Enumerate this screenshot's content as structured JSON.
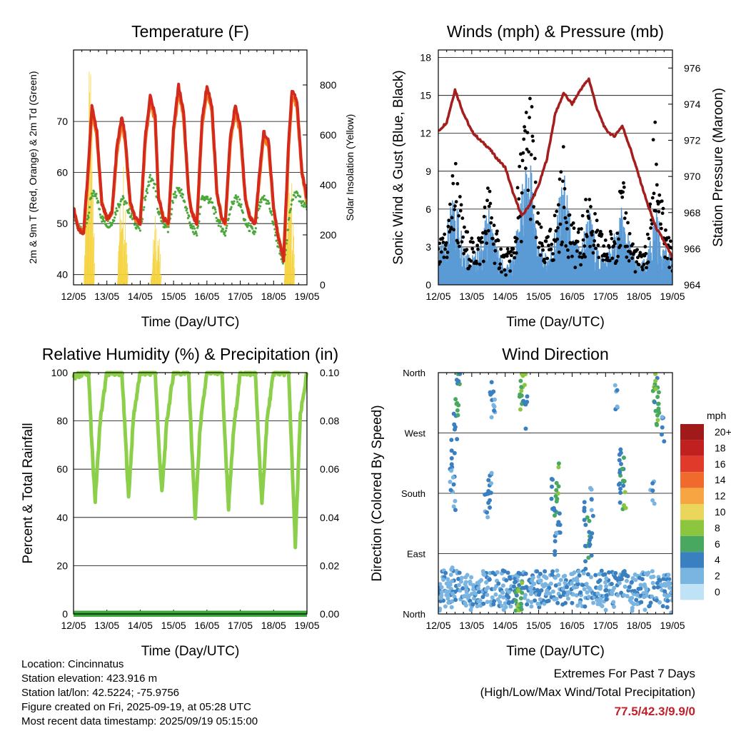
{
  "time_ticks": [
    "12/05",
    "13/05",
    "14/05",
    "15/05",
    "16/05",
    "17/05",
    "18/05",
    "19/05"
  ],
  "time_axis_label": "Time (Day/UTC)",
  "chart_data": [
    {
      "id": "temperature",
      "type": "line",
      "title": "Temperature (F)",
      "xlabel": "Time (Day/UTC)",
      "ylabel": "2m & 9m T (Red, Orange) & 2m Td (Green)",
      "y2label": "Solar Insolation (Yellow)",
      "ylim": [
        38,
        84
      ],
      "y2lim": [
        0,
        940
      ],
      "yticks": [
        40,
        50,
        60,
        70
      ],
      "y2ticks": [
        0,
        200,
        400,
        600,
        800
      ],
      "x": [
        0,
        0.15,
        0.3,
        0.45,
        0.55,
        0.7,
        0.85,
        1.0,
        1.15,
        1.3,
        1.45,
        1.55,
        1.7,
        1.85,
        2.0,
        2.15,
        2.3,
        2.45,
        2.55,
        2.7,
        2.85,
        3.0,
        3.15,
        3.3,
        3.45,
        3.55,
        3.7,
        3.85,
        4.0,
        4.15,
        4.3,
        4.45,
        4.55,
        4.7,
        4.85,
        5.0,
        5.15,
        5.3,
        5.45,
        5.55,
        5.7,
        5.85,
        6.0,
        6.15,
        6.3,
        6.45,
        6.55,
        6.7,
        6.85,
        7.0
      ],
      "series": [
        {
          "name": "2m T",
          "color": "#d42a1e",
          "values": [
            53,
            49,
            48,
            62,
            73,
            68,
            54,
            51,
            52,
            65,
            71,
            67,
            54,
            51,
            50,
            67,
            75,
            71,
            55,
            51,
            50,
            69,
            77,
            72,
            56,
            52,
            50,
            70,
            77,
            73,
            56,
            51,
            50,
            67,
            73,
            69,
            55,
            51,
            50,
            58,
            68,
            66,
            53,
            47,
            43,
            66,
            76,
            74,
            60,
            55
          ]
        },
        {
          "name": "9m T",
          "color": "#f07a1e",
          "values": [
            53,
            49,
            48,
            61,
            72,
            67,
            54,
            51,
            52,
            64,
            70,
            66,
            54,
            51,
            50,
            66,
            74,
            70,
            55,
            51,
            50,
            68,
            76,
            71,
            56,
            52,
            50,
            69,
            76,
            72,
            56,
            51,
            50,
            66,
            72,
            68,
            55,
            51,
            50,
            57,
            67,
            65,
            53,
            47,
            43,
            65,
            75,
            73,
            60,
            54
          ]
        },
        {
          "name": "2m Td",
          "color": "#4aa83a",
          "values": [
            52,
            49,
            48,
            52,
            56,
            55,
            51,
            50,
            50,
            53,
            55,
            54,
            52,
            50,
            49,
            55,
            59,
            57,
            52,
            50,
            49,
            55,
            57,
            55,
            51,
            49,
            48,
            55,
            55,
            54,
            51,
            49,
            48,
            53,
            55,
            54,
            50,
            49,
            48,
            53,
            55,
            54,
            50,
            45,
            42,
            50,
            55,
            56,
            54,
            53
          ]
        },
        {
          "name": "Solar Insolation",
          "color": "#f5d23a",
          "axis": "y2",
          "values": [
            0,
            0,
            420,
            880,
            600,
            200,
            0,
            0,
            0,
            350,
            550,
            250,
            0,
            0,
            0,
            400,
            780,
            300,
            0,
            0,
            0,
            450,
            700,
            280,
            0,
            0,
            0,
            380,
            650,
            260,
            0,
            0,
            0,
            300,
            500,
            200,
            0,
            0,
            0,
            380,
            700,
            230,
            0,
            0,
            0,
            500,
            800,
            250,
            0,
            0
          ]
        }
      ]
    },
    {
      "id": "winds",
      "type": "line",
      "title": "Winds (mph) & Pressure (mb)",
      "xlabel": "Time (Day/UTC)",
      "ylabel": "Sonic Wind & Gust (Blue, Black)",
      "y2label": "Station Pressure (Maroon)",
      "ylim": [
        0,
        18.6
      ],
      "y2lim": [
        964,
        977
      ],
      "yticks": [
        0,
        3,
        6,
        9,
        12,
        15,
        18
      ],
      "y2ticks": [
        964,
        966,
        968,
        970,
        972,
        974,
        976
      ],
      "x": [
        0,
        0.25,
        0.5,
        0.75,
        1.0,
        1.25,
        1.5,
        1.75,
        2.0,
        2.25,
        2.5,
        2.75,
        3.0,
        3.25,
        3.5,
        3.75,
        4.0,
        4.25,
        4.5,
        4.75,
        5.0,
        5.25,
        5.5,
        5.75,
        6.0,
        6.25,
        6.5,
        6.75,
        7.0
      ],
      "series": [
        {
          "name": "Sonic Wind",
          "color": "#5b9bd5",
          "values": [
            1.5,
            3,
            5,
            2.5,
            1.5,
            2,
            4,
            2,
            1,
            1.5,
            5,
            7,
            2,
            1.5,
            3,
            6,
            2.5,
            2,
            4,
            2,
            1.5,
            2.5,
            4,
            2,
            1,
            1.5,
            4,
            2,
            1.5
          ]
        },
        {
          "name": "Gust",
          "color": "#000000",
          "values": [
            2.5,
            4,
            9,
            4,
            3,
            3.5,
            7,
            3.5,
            2,
            3,
            10,
            14,
            4,
            3,
            5,
            9,
            4,
            3.5,
            7,
            4,
            3,
            4,
            7,
            3.5,
            2,
            3,
            12,
            4,
            2.5
          ]
        },
        {
          "name": "Station Pressure",
          "color": "#a41e1e",
          "axis": "y2",
          "values": [
            972.5,
            973,
            974.8,
            973.5,
            972.5,
            972,
            971.6,
            971,
            970.5,
            969,
            967.8,
            968.5,
            969.5,
            971,
            973.5,
            974.6,
            974,
            974.8,
            975.4,
            973.7,
            972.6,
            972.2,
            972.8,
            971.5,
            970,
            968.5,
            967.2,
            966.4,
            965.5
          ]
        }
      ]
    },
    {
      "id": "humidity",
      "type": "line",
      "title": "Relative Humidity (%) & Precipitation (in)",
      "xlabel": "Time (Day/UTC)",
      "ylabel": "Percent & Total Rainfall",
      "ylim": [
        0,
        100
      ],
      "y2lim": [
        0,
        0.1
      ],
      "yticks": [
        0,
        20,
        40,
        60,
        80,
        100
      ],
      "y2ticks": [
        "0.00",
        "0.02",
        "0.04",
        "0.06",
        "0.08",
        "0.10"
      ],
      "x": [
        0,
        0.3,
        0.45,
        0.55,
        0.65,
        0.8,
        1.0,
        1.3,
        1.45,
        1.55,
        1.65,
        1.8,
        2.0,
        2.3,
        2.45,
        2.55,
        2.65,
        2.8,
        3.0,
        3.3,
        3.45,
        3.55,
        3.65,
        3.8,
        4.0,
        4.3,
        4.45,
        4.55,
        4.65,
        4.8,
        5.0,
        5.3,
        5.45,
        5.55,
        5.65,
        5.8,
        6.0,
        6.3,
        6.45,
        6.55,
        6.65,
        6.8,
        7.0
      ],
      "series": [
        {
          "name": "Relative Humidity",
          "color": "#8ccf4a",
          "values": [
            98,
            100,
            100,
            70,
            47,
            80,
            100,
            100,
            100,
            75,
            48,
            82,
            100,
            100,
            100,
            72,
            50,
            80,
            100,
            100,
            100,
            68,
            40,
            78,
            100,
            100,
            100,
            70,
            44,
            76,
            100,
            100,
            100,
            72,
            45,
            80,
            100,
            100,
            100,
            64,
            28,
            82,
            100
          ]
        },
        {
          "name": "Total Precipitation",
          "color": "#3aa83a",
          "axis": "y2",
          "values": [
            0,
            0,
            0,
            0,
            0,
            0,
            0,
            0,
            0,
            0,
            0,
            0,
            0,
            0,
            0,
            0,
            0,
            0,
            0,
            0,
            0,
            0,
            0,
            0,
            0,
            0,
            0,
            0,
            0,
            0,
            0,
            0,
            0,
            0,
            0,
            0,
            0,
            0,
            0,
            0,
            0,
            0,
            0
          ]
        }
      ]
    },
    {
      "id": "direction",
      "type": "scatter",
      "title": "Wind Direction",
      "xlabel": "Time (Day/UTC)",
      "ylabel": "Direction (Colored By Speed)",
      "ylim": [
        0,
        360
      ],
      "yticks": [
        "North",
        "East",
        "South",
        "West",
        "North"
      ],
      "colorbar": {
        "title": "mph",
        "labels": [
          "20+",
          "18",
          "16",
          "14",
          "12",
          "10",
          "8",
          "6",
          "4",
          "2",
          "0"
        ],
        "colors": [
          "#a01a1a",
          "#c02020",
          "#e03a2a",
          "#f06a2e",
          "#f6a542",
          "#ead65a",
          "#8cc63f",
          "#48a860",
          "#3a80c0",
          "#7ab4e0",
          "#bfe2f6"
        ]
      },
      "points": [
        [
          0.1,
          30,
          2
        ],
        [
          0.25,
          20,
          3
        ],
        [
          0.4,
          45,
          2
        ],
        [
          0.5,
          280,
          4
        ],
        [
          0.55,
          320,
          6
        ],
        [
          0.6,
          350,
          5
        ],
        [
          0.45,
          240,
          4
        ],
        [
          0.5,
          180,
          3
        ],
        [
          0.4,
          200,
          3
        ],
        [
          0.8,
          25,
          2
        ],
        [
          1.0,
          30,
          2
        ],
        [
          1.2,
          35,
          3
        ],
        [
          1.4,
          40,
          2
        ],
        [
          1.5,
          180,
          4
        ],
        [
          1.55,
          200,
          3
        ],
        [
          1.45,
          160,
          3
        ],
        [
          1.6,
          330,
          4
        ],
        [
          1.65,
          300,
          3
        ],
        [
          1.9,
          20,
          2
        ],
        [
          2.1,
          25,
          3
        ],
        [
          2.3,
          30,
          4
        ],
        [
          2.35,
          20,
          6
        ],
        [
          2.4,
          15,
          7
        ],
        [
          2.45,
          340,
          6
        ],
        [
          2.5,
          320,
          7
        ],
        [
          2.55,
          350,
          8
        ],
        [
          2.6,
          300,
          4
        ],
        [
          2.5,
          25,
          7
        ],
        [
          2.8,
          30,
          2
        ],
        [
          3.0,
          25,
          3
        ],
        [
          3.2,
          35,
          2
        ],
        [
          3.4,
          180,
          4
        ],
        [
          3.5,
          160,
          5
        ],
        [
          3.55,
          200,
          7
        ],
        [
          3.6,
          140,
          4
        ],
        [
          3.5,
          100,
          3
        ],
        [
          3.8,
          30,
          3
        ],
        [
          4.0,
          35,
          2
        ],
        [
          4.2,
          40,
          3
        ],
        [
          4.4,
          150,
          4
        ],
        [
          4.5,
          120,
          5
        ],
        [
          4.55,
          100,
          4
        ],
        [
          4.6,
          170,
          3
        ],
        [
          4.45,
          80,
          5
        ],
        [
          4.8,
          25,
          2
        ],
        [
          5.0,
          30,
          3
        ],
        [
          5.2,
          35,
          2
        ],
        [
          5.4,
          190,
          4
        ],
        [
          5.5,
          210,
          5
        ],
        [
          5.55,
          180,
          7
        ],
        [
          5.45,
          230,
          4
        ],
        [
          5.3,
          330,
          3
        ],
        [
          5.8,
          25,
          2
        ],
        [
          6.0,
          30,
          3
        ],
        [
          6.2,
          20,
          2
        ],
        [
          6.4,
          180,
          3
        ],
        [
          6.5,
          330,
          5
        ],
        [
          6.55,
          300,
          7
        ],
        [
          6.6,
          320,
          6
        ],
        [
          6.45,
          350,
          7
        ],
        [
          6.7,
          280,
          3
        ],
        [
          6.8,
          25,
          2
        ],
        [
          6.9,
          30,
          3
        ],
        [
          6.95,
          20,
          2
        ]
      ]
    }
  ],
  "info": {
    "location": "Location: Cincinnatus",
    "elevation": "Station elevation: 423.916 m",
    "latlon": "Station lat/lon: 42.5224; -75.9756",
    "created": "Figure created on Fri, 2025-09-19, at 05:28 UTC",
    "timestamp": "Most recent data timestamp: 2025/09/19 05:15:00"
  },
  "extremes": {
    "title": "Extremes For Past 7 Days",
    "subtitle": "(High/Low/Max Wind/Total Precipitation)",
    "value": "77.5/42.3/9.9/0"
  }
}
